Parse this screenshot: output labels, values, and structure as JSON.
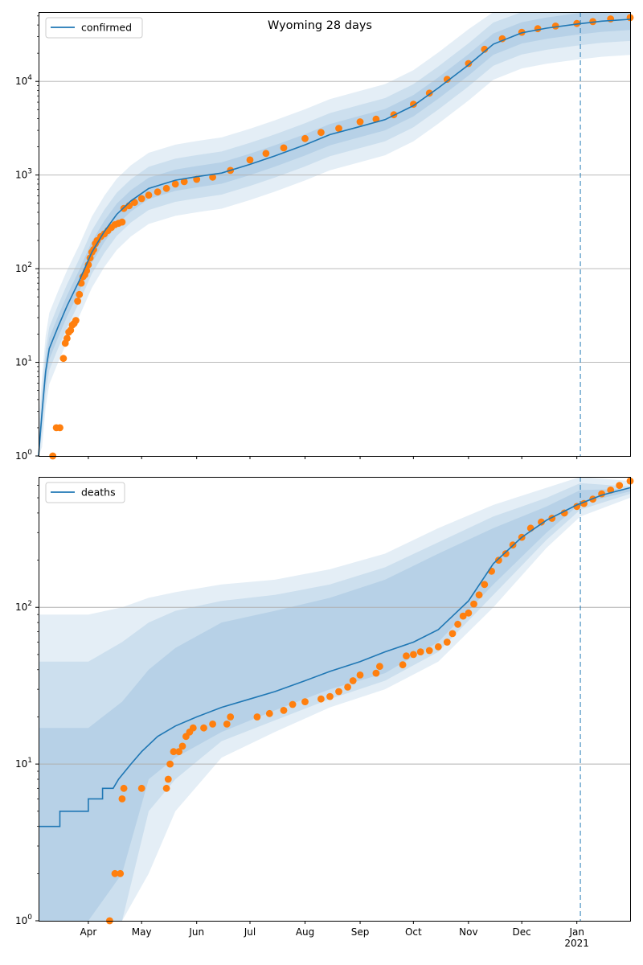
{
  "figure": {
    "title": "Wyoming 28 days",
    "month_ticks": [
      "Apr",
      "May",
      "Jun",
      "Jul",
      "Aug",
      "Sep",
      "Oct",
      "Nov",
      "Dec",
      "Jan"
    ],
    "year_label": "2021"
  },
  "colors": {
    "model_line": "#1f77b4",
    "observed": "#ff7f0e",
    "band": "#1f77b4",
    "forecast_start_line": "#1f77b4",
    "grid": "#b0b0b0"
  },
  "chart_data": [
    {
      "type": "line",
      "panel": "confirmed",
      "legend": "confirmed",
      "yscale": "log",
      "ylim": [
        1,
        55000
      ],
      "xlim": [
        "2020-03-04",
        "2021-01-31"
      ],
      "forecast_start": "2021-01-03",
      "y_tick_labels": [
        "10^0",
        "10^1",
        "10^2",
        "10^3",
        "10^4"
      ],
      "grid": "y-major",
      "legend_position": "upper left",
      "model": [
        [
          "2020-03-04",
          1
        ],
        [
          "2020-03-06",
          3
        ],
        [
          "2020-03-08",
          8
        ],
        [
          "2020-03-10",
          14
        ],
        [
          "2020-03-15",
          24
        ],
        [
          "2020-03-20",
          40
        ],
        [
          "2020-03-27",
          75
        ],
        [
          "2020-04-03",
          150
        ],
        [
          "2020-04-10",
          250
        ],
        [
          "2020-04-17",
          380
        ],
        [
          "2020-04-25",
          530
        ],
        [
          "2020-05-05",
          720
        ],
        [
          "2020-05-20",
          880
        ],
        [
          "2020-06-01",
          960
        ],
        [
          "2020-06-15",
          1050
        ],
        [
          "2020-07-01",
          1300
        ],
        [
          "2020-07-15",
          1600
        ],
        [
          "2020-08-01",
          2100
        ],
        [
          "2020-08-15",
          2700
        ],
        [
          "2020-09-01",
          3300
        ],
        [
          "2020-09-15",
          3900
        ],
        [
          "2020-10-01",
          5500
        ],
        [
          "2020-10-15",
          8500
        ],
        [
          "2020-11-01",
          15000
        ],
        [
          "2020-11-15",
          25000
        ],
        [
          "2020-12-01",
          33000
        ],
        [
          "2020-12-15",
          37000
        ],
        [
          "2021-01-01",
          41000
        ],
        [
          "2021-01-15",
          44000
        ],
        [
          "2021-01-31",
          46000
        ]
      ],
      "band_factors": [
        2.4,
        1.7,
        1.3
      ],
      "observed": [
        [
          "2020-03-12",
          1
        ],
        [
          "2020-03-14",
          2
        ],
        [
          "2020-03-16",
          2
        ],
        [
          "2020-03-18",
          11
        ],
        [
          "2020-03-19",
          16
        ],
        [
          "2020-03-20",
          18
        ],
        [
          "2020-03-21",
          21
        ],
        [
          "2020-03-22",
          22
        ],
        [
          "2020-03-23",
          25
        ],
        [
          "2020-03-24",
          26
        ],
        [
          "2020-03-25",
          28
        ],
        [
          "2020-03-26",
          45
        ],
        [
          "2020-03-27",
          53
        ],
        [
          "2020-03-28",
          70
        ],
        [
          "2020-03-29",
          82
        ],
        [
          "2020-03-30",
          86
        ],
        [
          "2020-03-31",
          95
        ],
        [
          "2020-04-01",
          110
        ],
        [
          "2020-04-02",
          130
        ],
        [
          "2020-04-03",
          150
        ],
        [
          "2020-04-04",
          160
        ],
        [
          "2020-04-05",
          185
        ],
        [
          "2020-04-06",
          200
        ],
        [
          "2020-04-08",
          220
        ],
        [
          "2020-04-10",
          235
        ],
        [
          "2020-04-12",
          255
        ],
        [
          "2020-04-14",
          275
        ],
        [
          "2020-04-16",
          295
        ],
        [
          "2020-04-18",
          305
        ],
        [
          "2020-04-20",
          315
        ],
        [
          "2020-04-21",
          440
        ],
        [
          "2020-04-24",
          470
        ],
        [
          "2020-04-27",
          510
        ],
        [
          "2020-05-01",
          560
        ],
        [
          "2020-05-05",
          610
        ],
        [
          "2020-05-10",
          660
        ],
        [
          "2020-05-15",
          720
        ],
        [
          "2020-05-20",
          800
        ],
        [
          "2020-05-25",
          850
        ],
        [
          "2020-06-01",
          900
        ],
        [
          "2020-06-10",
          950
        ],
        [
          "2020-06-20",
          1120
        ],
        [
          "2020-07-01",
          1450
        ],
        [
          "2020-07-10",
          1700
        ],
        [
          "2020-07-20",
          1950
        ],
        [
          "2020-08-01",
          2450
        ],
        [
          "2020-08-10",
          2850
        ],
        [
          "2020-08-20",
          3150
        ],
        [
          "2020-09-01",
          3700
        ],
        [
          "2020-09-10",
          3950
        ],
        [
          "2020-09-20",
          4400
        ],
        [
          "2020-10-01",
          5700
        ],
        [
          "2020-10-10",
          7500
        ],
        [
          "2020-10-20",
          10500
        ],
        [
          "2020-11-01",
          15500
        ],
        [
          "2020-11-10",
          22000
        ],
        [
          "2020-11-20",
          28500
        ],
        [
          "2020-12-01",
          33500
        ],
        [
          "2020-12-10",
          36500
        ],
        [
          "2020-12-20",
          39000
        ],
        [
          "2021-01-01",
          41500
        ],
        [
          "2021-01-10",
          43500
        ],
        [
          "2021-01-20",
          46500
        ],
        [
          "2021-01-31",
          48000
        ]
      ]
    },
    {
      "type": "line",
      "panel": "deaths",
      "legend": "deaths",
      "yscale": "log",
      "ylim": [
        1,
        680
      ],
      "xlim": [
        "2020-03-04",
        "2021-01-31"
      ],
      "forecast_start": "2021-01-03",
      "y_tick_labels": [
        "10^0",
        "10^1",
        "10^2"
      ],
      "grid": "y-major",
      "legend_position": "upper left",
      "model": [
        [
          "2020-03-04",
          4
        ],
        [
          "2020-03-15",
          4
        ],
        [
          "2020-03-16",
          5
        ],
        [
          "2020-03-31",
          5
        ],
        [
          "2020-04-01",
          6
        ],
        [
          "2020-04-08",
          6
        ],
        [
          "2020-04-09",
          7
        ],
        [
          "2020-04-15",
          7
        ],
        [
          "2020-04-18",
          8
        ],
        [
          "2020-04-25",
          10
        ],
        [
          "2020-05-01",
          12
        ],
        [
          "2020-05-10",
          15
        ],
        [
          "2020-05-20",
          17.5
        ],
        [
          "2020-06-01",
          20
        ],
        [
          "2020-06-15",
          23
        ],
        [
          "2020-07-01",
          26
        ],
        [
          "2020-07-15",
          29
        ],
        [
          "2020-08-01",
          34
        ],
        [
          "2020-08-15",
          39
        ],
        [
          "2020-09-01",
          45
        ],
        [
          "2020-09-15",
          52
        ],
        [
          "2020-10-01",
          60
        ],
        [
          "2020-10-15",
          72
        ],
        [
          "2020-11-01",
          110
        ],
        [
          "2020-11-15",
          190
        ],
        [
          "2020-12-01",
          280
        ],
        [
          "2020-12-15",
          360
        ],
        [
          "2021-01-01",
          450
        ],
        [
          "2021-01-15",
          520
        ],
        [
          "2021-01-31",
          580
        ]
      ],
      "band_upper": [
        [
          90,
          45,
          17
        ],
        [
          90,
          45,
          17
        ],
        [
          100,
          60,
          25
        ],
        [
          115,
          80,
          40
        ],
        [
          125,
          95,
          55
        ],
        [
          140,
          110,
          80
        ],
        [
          150,
          120,
          95
        ],
        [
          175,
          140,
          115
        ],
        [
          220,
          180,
          150
        ],
        [
          320,
          260,
          220
        ],
        [
          450,
          380,
          320
        ],
        [
          580,
          500,
          440
        ],
        [
          680,
          620,
          560
        ],
        [
          640,
          590,
          570
        ]
      ],
      "band_lower": [
        [
          0.3,
          0.3,
          0.3
        ],
        [
          0.3,
          0.3,
          0.3
        ],
        [
          0.3,
          0.8,
          2
        ],
        [
          2,
          5,
          8
        ],
        [
          5,
          8,
          11
        ],
        [
          11,
          14,
          16
        ],
        [
          16,
          19,
          22
        ],
        [
          23,
          26,
          30
        ],
        [
          30,
          34,
          38
        ],
        [
          45,
          52,
          60
        ],
        [
          100,
          120,
          140
        ],
        [
          240,
          270,
          300
        ],
        [
          380,
          420,
          460
        ],
        [
          500,
          530,
          550
        ]
      ],
      "band_dates": [
        "2020-03-04",
        "2020-04-01",
        "2020-04-20",
        "2020-05-05",
        "2020-05-20",
        "2020-06-15",
        "2020-07-15",
        "2020-08-15",
        "2020-09-15",
        "2020-10-15",
        "2020-11-15",
        "2020-12-15",
        "2021-01-03",
        "2021-01-31"
      ],
      "observed": [
        [
          "2020-04-13",
          1
        ],
        [
          "2020-04-16",
          2
        ],
        [
          "2020-04-19",
          2
        ],
        [
          "2020-04-20",
          6
        ],
        [
          "2020-04-21",
          7
        ],
        [
          "2020-05-01",
          7
        ],
        [
          "2020-05-15",
          7
        ],
        [
          "2020-05-16",
          8
        ],
        [
          "2020-05-17",
          10
        ],
        [
          "2020-05-19",
          12
        ],
        [
          "2020-05-22",
          12
        ],
        [
          "2020-05-24",
          13
        ],
        [
          "2020-05-26",
          15
        ],
        [
          "2020-05-28",
          16
        ],
        [
          "2020-05-30",
          17
        ],
        [
          "2020-06-05",
          17
        ],
        [
          "2020-06-10",
          18
        ],
        [
          "2020-06-18",
          18
        ],
        [
          "2020-06-20",
          20
        ],
        [
          "2020-07-05",
          20
        ],
        [
          "2020-07-12",
          21
        ],
        [
          "2020-07-20",
          22
        ],
        [
          "2020-07-25",
          24
        ],
        [
          "2020-08-01",
          25
        ],
        [
          "2020-08-10",
          26
        ],
        [
          "2020-08-15",
          27
        ],
        [
          "2020-08-20",
          29
        ],
        [
          "2020-08-25",
          31
        ],
        [
          "2020-08-28",
          34
        ],
        [
          "2020-09-01",
          37
        ],
        [
          "2020-09-10",
          38
        ],
        [
          "2020-09-12",
          42
        ],
        [
          "2020-09-25",
          43
        ],
        [
          "2020-09-27",
          49
        ],
        [
          "2020-10-01",
          50
        ],
        [
          "2020-10-05",
          52
        ],
        [
          "2020-10-10",
          53
        ],
        [
          "2020-10-15",
          56
        ],
        [
          "2020-10-20",
          60
        ],
        [
          "2020-10-23",
          68
        ],
        [
          "2020-10-26",
          78
        ],
        [
          "2020-10-29",
          88
        ],
        [
          "2020-11-01",
          92
        ],
        [
          "2020-11-04",
          105
        ],
        [
          "2020-11-07",
          120
        ],
        [
          "2020-11-10",
          140
        ],
        [
          "2020-11-14",
          170
        ],
        [
          "2020-11-18",
          200
        ],
        [
          "2020-11-22",
          220
        ],
        [
          "2020-11-26",
          250
        ],
        [
          "2020-12-01",
          280
        ],
        [
          "2020-12-06",
          320
        ],
        [
          "2020-12-12",
          350
        ],
        [
          "2020-12-18",
          370
        ],
        [
          "2020-12-25",
          400
        ],
        [
          "2021-01-01",
          440
        ],
        [
          "2021-01-05",
          460
        ],
        [
          "2021-01-10",
          490
        ],
        [
          "2021-01-15",
          530
        ],
        [
          "2021-01-20",
          560
        ],
        [
          "2021-01-25",
          600
        ],
        [
          "2021-01-31",
          640
        ]
      ]
    }
  ]
}
